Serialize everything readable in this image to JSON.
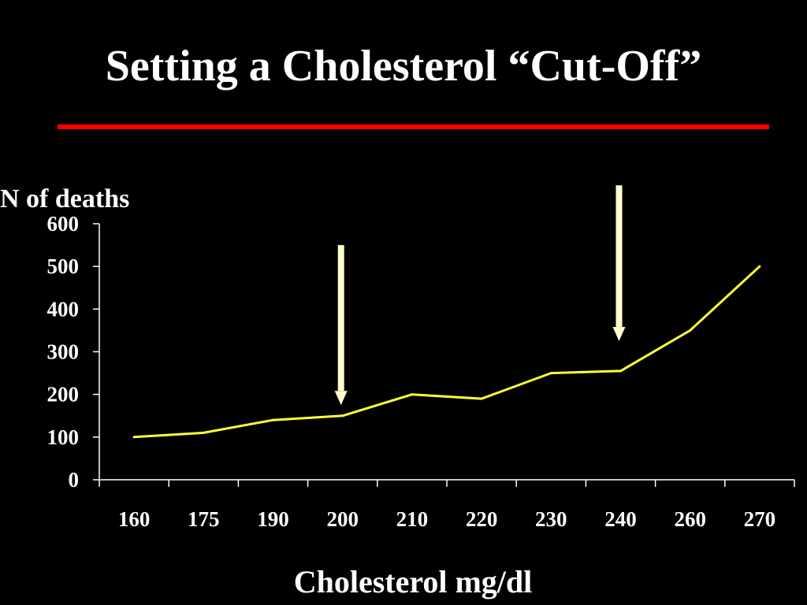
{
  "slide": {
    "title": "Setting a Cholesterol “Cut-Off”",
    "rule_color": "#ff0000",
    "background": "#000000"
  },
  "chart_data": {
    "type": "line",
    "categories": [
      "160",
      "175",
      "190",
      "200",
      "210",
      "220",
      "230",
      "240",
      "260",
      "270"
    ],
    "series": [
      {
        "values": [
          100,
          110,
          140,
          150,
          200,
          190,
          250,
          255,
          350,
          500
        ]
      }
    ],
    "xlabel": "Cholesterol mg/dl",
    "ylabel": "N of deaths",
    "ylim": [
      0,
      600
    ],
    "yticks": [
      0,
      100,
      200,
      300,
      400,
      500,
      600
    ],
    "grid": false,
    "line_color": "#ffff33",
    "axis_color": "#ffffff",
    "annotations": [
      {
        "type": "arrow",
        "x": "200",
        "y_top": 550,
        "y_bottom": 175,
        "color": "#ffffcc"
      },
      {
        "type": "arrow",
        "x": "240",
        "y_top": 690,
        "y_bottom": 325,
        "color": "#ffffcc"
      }
    ]
  }
}
